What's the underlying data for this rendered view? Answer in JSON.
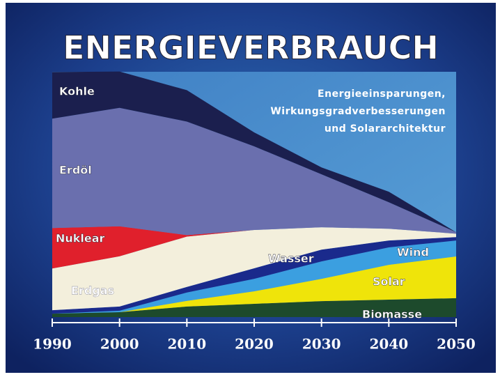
{
  "chart_data": {
    "type": "stacked_area",
    "title": "ENERGIEVERBRAUCH",
    "annotation": [
      "Energieeinsparungen,",
      "Wirkungsgradverbesserungen",
      "und Solararchitektur"
    ],
    "x": [
      1990,
      2000,
      2010,
      2020,
      2030,
      2040,
      2050
    ],
    "xlim": [
      1990,
      2050
    ],
    "xticks": [
      1990,
      2000,
      2010,
      2020,
      2030,
      2040,
      2050
    ],
    "ylim": [
      0,
      100
    ],
    "series": [
      {
        "name": "Biomasse",
        "color": "#1d4a2c",
        "values": [
          1.4,
          2,
          4.3,
          5.4,
          6.5,
          7.1,
          7.7
        ]
      },
      {
        "name": "Solar",
        "color": "#efe40a",
        "values": [
          0,
          0,
          2.3,
          5.1,
          9.1,
          14.2,
          17
        ]
      },
      {
        "name": "Wind",
        "color": "#3b9fe0",
        "values": [
          0,
          0.6,
          3.4,
          5.1,
          7.1,
          7.1,
          6.5
        ]
      },
      {
        "name": "Wasser",
        "color": "#1a2a8c",
        "values": [
          1.4,
          1.7,
          2.3,
          4.3,
          4.8,
          2.8,
          1.4
        ]
      },
      {
        "name": "Erdgas",
        "color": "#f3efdc",
        "values": [
          17,
          20.5,
          20.5,
          15.6,
          9.1,
          4.8,
          1.4
        ]
      },
      {
        "name": "Nuklear",
        "color": "#e0202c",
        "values": [
          16.5,
          12.2,
          0.6,
          0,
          0,
          0,
          0
        ]
      },
      {
        "name": "Erdöl",
        "color": "#6a6fae",
        "values": [
          44.6,
          48.3,
          46.3,
          34.1,
          21.6,
          10.8,
          0.6
        ]
      },
      {
        "name": "Kohle",
        "color": "#1b1f4e",
        "values": [
          19,
          14.8,
          12.8,
          5.7,
          2.8,
          4.3,
          0
        ]
      }
    ]
  }
}
